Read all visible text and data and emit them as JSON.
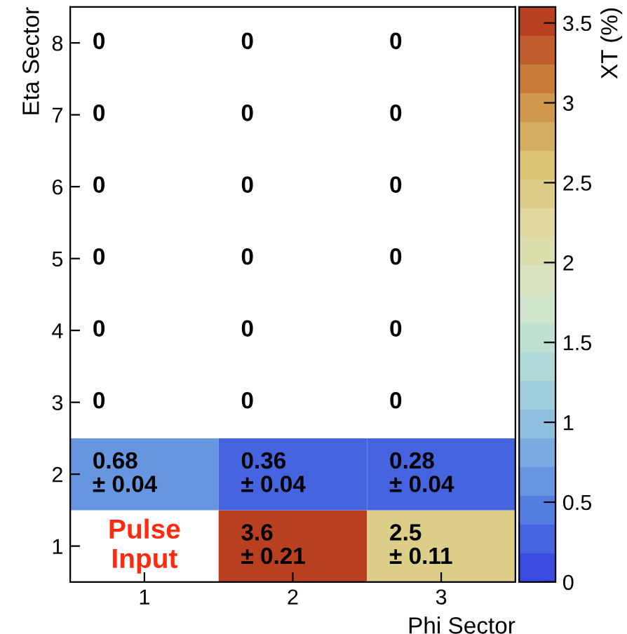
{
  "chart_data": {
    "type": "heatmap",
    "xlabel": "Phi Sector",
    "ylabel": "Eta Sector",
    "clabel": "XT (%)",
    "categories": [
      "1",
      "2",
      "3"
    ],
    "y_categories": [
      "8",
      "7",
      "6",
      "5",
      "4",
      "3",
      "2",
      "1"
    ],
    "cells": [
      [
        null,
        null,
        null
      ],
      [
        null,
        null,
        null
      ],
      [
        null,
        null,
        null
      ],
      [
        null,
        null,
        null
      ],
      [
        null,
        null,
        null
      ],
      [
        null,
        null,
        null
      ],
      [
        0.68,
        0.36,
        0.28
      ],
      [
        null,
        3.6,
        2.5
      ]
    ],
    "cell_labels": [
      [
        "0",
        "0",
        "0"
      ],
      [
        "0",
        "0",
        "0"
      ],
      [
        "0",
        "0",
        "0"
      ],
      [
        "0",
        "0",
        "0"
      ],
      [
        "0",
        "0",
        "0"
      ],
      [
        "0",
        "0",
        "0"
      ],
      [
        "0.68\n± 0.04",
        "0.36\n± 0.04",
        "0.28\n± 0.04"
      ],
      [
        null,
        "3.6\n± 0.21",
        "2.5\n± 0.11"
      ]
    ],
    "annotations": [
      "Pulse\nInput"
    ],
    "clim": [
      0,
      3.6
    ],
    "cticks": [
      0,
      0.5,
      1,
      1.5,
      2,
      2.5,
      3,
      3.5
    ]
  }
}
